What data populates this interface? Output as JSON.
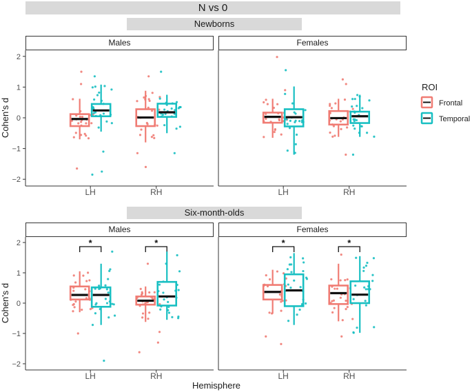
{
  "title": "N vs 0",
  "xlabel": "Hemisphere",
  "ylabel": "Cohen's d",
  "legend": {
    "title": "ROI",
    "items": [
      {
        "label": "Frontal",
        "color": "#F07C74"
      },
      {
        "label": "Temporal",
        "color": "#18BFC2"
      }
    ]
  },
  "colors": {
    "frontal": "#F07C74",
    "temporal": "#18BFC2",
    "median": "#111111"
  },
  "chart_data": {
    "type": "box",
    "ylim": [
      -2.2,
      2.2
    ],
    "yticks": [
      -2,
      -1,
      0,
      1,
      2
    ],
    "categories": [
      "LH",
      "RH"
    ],
    "series_names": [
      "Frontal",
      "Temporal"
    ],
    "groups": [
      {
        "title": "Newborns",
        "facets": [
          {
            "title": "Males",
            "boxes": [
              {
                "category": "LH",
                "series": "Frontal",
                "min": -0.7,
                "q1": -0.27,
                "median": -0.04,
                "q3": 0.12,
                "max": 0.62,
                "outliers": [
                  1.5,
                  1.1,
                  -1.65
                ],
                "sig": false
              },
              {
                "category": "LH",
                "series": "Temporal",
                "min": -0.45,
                "q1": 0.05,
                "median": 0.24,
                "q3": 0.45,
                "max": 1.08,
                "outliers": [
                  1.35,
                  -1.1,
                  -1.75,
                  -1.85
                ],
                "sig": false
              },
              {
                "category": "RH",
                "series": "Frontal",
                "min": -0.8,
                "q1": -0.27,
                "median": 0.01,
                "q3": 0.28,
                "max": 0.88,
                "outliers": [
                  1.35,
                  -1.15,
                  -1.6
                ],
                "sig": false
              },
              {
                "category": "RH",
                "series": "Temporal",
                "min": -0.5,
                "q1": 0.03,
                "median": 0.18,
                "q3": 0.46,
                "max": 0.75,
                "outliers": [
                  1.5,
                  -1.15
                ],
                "sig": false
              }
            ]
          },
          {
            "title": "Females",
            "boxes": [
              {
                "category": "LH",
                "series": "Frontal",
                "min": -0.65,
                "q1": -0.16,
                "median": 0.03,
                "q3": 0.17,
                "max": 0.62,
                "outliers": [
                  1.98,
                  0.9
                ],
                "sig": false
              },
              {
                "category": "LH",
                "series": "Temporal",
                "min": -1.2,
                "q1": -0.28,
                "median": 0.02,
                "q3": 0.28,
                "max": 1.02,
                "outliers": [
                  1.55
                ],
                "sig": false
              },
              {
                "category": "RH",
                "series": "Frontal",
                "min": -0.62,
                "q1": -0.22,
                "median": -0.01,
                "q3": 0.22,
                "max": 0.62,
                "outliers": [
                  1.25,
                  1.1,
                  -1.2
                ],
                "sig": false
              },
              {
                "category": "RH",
                "series": "Temporal",
                "min": -0.62,
                "q1": -0.17,
                "median": 0.05,
                "q3": 0.2,
                "max": 0.75,
                "outliers": [
                  -1.2
                ],
                "sig": false
              }
            ]
          }
        ]
      },
      {
        "title": "Six-month-olds",
        "facets": [
          {
            "title": "Males",
            "boxes": [
              {
                "category": "LH",
                "series": "Frontal",
                "min": -0.3,
                "q1": 0.12,
                "median": 0.27,
                "q3": 0.55,
                "max": 1.05,
                "outliers": [
                  -1.0
                ],
                "sig": true
              },
              {
                "category": "LH",
                "series": "Temporal",
                "min": -0.72,
                "q1": -0.12,
                "median": 0.27,
                "q3": 0.52,
                "max": 1.3,
                "outliers": [
                  1.7,
                  -1.9
                ],
                "sig": true
              },
              {
                "category": "RH",
                "series": "Frontal",
                "min": -0.62,
                "q1": -0.05,
                "median": 0.08,
                "q3": 0.22,
                "max": 0.55,
                "outliers": [
                  1.3,
                  -0.95,
                  -1.3,
                  -1.62
                ],
                "sig": true
              },
              {
                "category": "RH",
                "series": "Temporal",
                "min": -0.55,
                "q1": -0.08,
                "median": 0.22,
                "q3": 0.7,
                "max": 1.7,
                "outliers": [],
                "sig": true
              }
            ]
          },
          {
            "title": "Females",
            "boxes": [
              {
                "category": "LH",
                "series": "Frontal",
                "min": -0.35,
                "q1": 0.12,
                "median": 0.37,
                "q3": 0.6,
                "max": 1.1,
                "outliers": [
                  -1.1,
                  -1.35
                ],
                "sig": true
              },
              {
                "category": "LH",
                "series": "Temporal",
                "min": -0.72,
                "q1": -0.1,
                "median": 0.42,
                "q3": 0.95,
                "max": 1.65,
                "outliers": [],
                "sig": true
              },
              {
                "category": "RH",
                "series": "Frontal",
                "min": -0.6,
                "q1": -0.03,
                "median": 0.33,
                "q3": 0.58,
                "max": 1.3,
                "outliers": [
                  1.6,
                  -1.1
                ],
                "sig": true
              },
              {
                "category": "RH",
                "series": "Temporal",
                "min": -0.98,
                "q1": 0.0,
                "median": 0.28,
                "q3": 0.72,
                "max": 1.55,
                "outliers": [],
                "sig": true
              }
            ]
          }
        ]
      }
    ]
  }
}
